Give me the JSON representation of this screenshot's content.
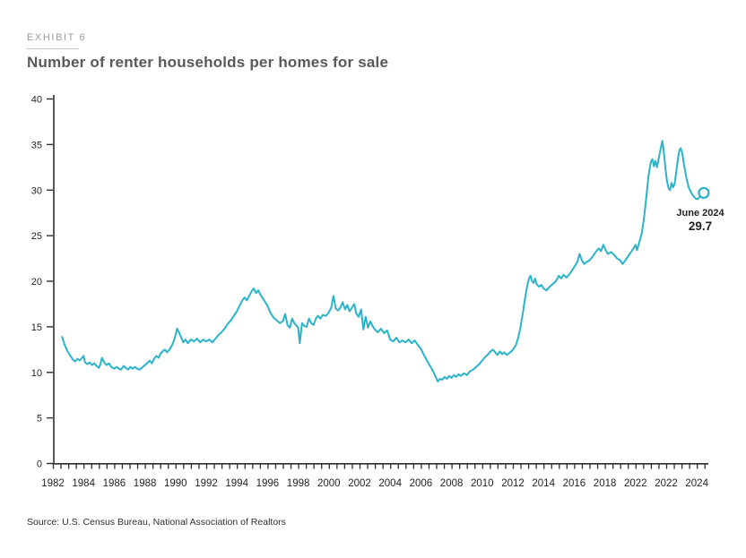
{
  "page": {
    "exhibit_label": "EXHIBIT 6",
    "title": "Number of renter households per homes for sale",
    "source": "Source: U.S. Census Bureau, National Association of Realtors"
  },
  "annotation": {
    "label": "June 2024",
    "value": "29.7"
  },
  "chart_data": {
    "type": "line",
    "title": "Number of renter households per homes for sale",
    "xlabel": "",
    "ylabel": "",
    "ylim": [
      0,
      40
    ],
    "x_range": [
      1982,
      2025
    ],
    "grid": false,
    "legend": "none",
    "line_color": "#2ab3c9",
    "axis_color": "#2e2e2e",
    "tick_label_color": "#231f20",
    "y_ticks": [
      0,
      5,
      10,
      15,
      20,
      25,
      30,
      35,
      40
    ],
    "x_tick_labels": [
      "1982",
      "1984",
      "1986",
      "1988",
      "1990",
      "1992",
      "1994",
      "1996",
      "1998",
      "2000",
      "2002",
      "2004",
      "2006",
      "2008",
      "2010",
      "2012",
      "2014",
      "2016",
      "2018",
      "2022",
      "2022",
      "2024"
    ],
    "end_marker": {
      "shape": "open-circle",
      "x": 2024.45,
      "y": 29.7,
      "label": "June 2024",
      "value": 29.7
    },
    "series": [
      {
        "name": "Renter households per homes for sale",
        "points": [
          [
            1982.6,
            13.9
          ],
          [
            1982.75,
            13.1
          ],
          [
            1982.9,
            12.5
          ],
          [
            1983.0,
            12.2
          ],
          [
            1983.15,
            11.8
          ],
          [
            1983.3,
            11.4
          ],
          [
            1983.45,
            11.2
          ],
          [
            1983.6,
            11.5
          ],
          [
            1983.75,
            11.3
          ],
          [
            1983.9,
            11.6
          ],
          [
            1984.0,
            11.8
          ],
          [
            1984.1,
            11.1
          ],
          [
            1984.25,
            10.9
          ],
          [
            1984.4,
            11.1
          ],
          [
            1984.55,
            10.8
          ],
          [
            1984.7,
            11.0
          ],
          [
            1984.85,
            10.7
          ],
          [
            1985.0,
            10.5
          ],
          [
            1985.1,
            10.9
          ],
          [
            1985.2,
            11.6
          ],
          [
            1985.35,
            11.1
          ],
          [
            1985.5,
            10.8
          ],
          [
            1985.65,
            11.0
          ],
          [
            1985.8,
            10.6
          ],
          [
            1986.0,
            10.4
          ],
          [
            1986.15,
            10.6
          ],
          [
            1986.3,
            10.4
          ],
          [
            1986.45,
            10.3
          ],
          [
            1986.6,
            10.7
          ],
          [
            1986.75,
            10.5
          ],
          [
            1986.9,
            10.3
          ],
          [
            1987.05,
            10.6
          ],
          [
            1987.2,
            10.4
          ],
          [
            1987.35,
            10.6
          ],
          [
            1987.5,
            10.4
          ],
          [
            1987.65,
            10.3
          ],
          [
            1987.8,
            10.5
          ],
          [
            1988.0,
            10.8
          ],
          [
            1988.15,
            11.0
          ],
          [
            1988.3,
            11.3
          ],
          [
            1988.45,
            11.0
          ],
          [
            1988.6,
            11.5
          ],
          [
            1988.75,
            11.8
          ],
          [
            1988.9,
            11.6
          ],
          [
            1989.0,
            12.0
          ],
          [
            1989.15,
            12.3
          ],
          [
            1989.3,
            12.5
          ],
          [
            1989.45,
            12.2
          ],
          [
            1989.6,
            12.5
          ],
          [
            1989.75,
            12.9
          ],
          [
            1989.9,
            13.5
          ],
          [
            1990.0,
            14.1
          ],
          [
            1990.1,
            14.8
          ],
          [
            1990.25,
            14.3
          ],
          [
            1990.4,
            13.7
          ],
          [
            1990.5,
            13.3
          ],
          [
            1990.65,
            13.6
          ],
          [
            1990.8,
            13.2
          ],
          [
            1991.0,
            13.6
          ],
          [
            1991.2,
            13.4
          ],
          [
            1991.4,
            13.7
          ],
          [
            1991.6,
            13.3
          ],
          [
            1991.8,
            13.6
          ],
          [
            1992.0,
            13.4
          ],
          [
            1992.2,
            13.6
          ],
          [
            1992.4,
            13.3
          ],
          [
            1992.6,
            13.7
          ],
          [
            1992.8,
            14.1
          ],
          [
            1993.0,
            14.4
          ],
          [
            1993.2,
            14.8
          ],
          [
            1993.4,
            15.3
          ],
          [
            1993.6,
            15.7
          ],
          [
            1993.8,
            16.2
          ],
          [
            1994.0,
            16.7
          ],
          [
            1994.2,
            17.4
          ],
          [
            1994.35,
            17.9
          ],
          [
            1994.5,
            18.2
          ],
          [
            1994.65,
            17.9
          ],
          [
            1994.8,
            18.4
          ],
          [
            1995.0,
            19.0
          ],
          [
            1995.1,
            19.2
          ],
          [
            1995.25,
            18.7
          ],
          [
            1995.4,
            19.0
          ],
          [
            1995.55,
            18.5
          ],
          [
            1995.7,
            18.1
          ],
          [
            1995.85,
            17.7
          ],
          [
            1996.0,
            17.3
          ],
          [
            1996.2,
            16.5
          ],
          [
            1996.4,
            16.0
          ],
          [
            1996.6,
            15.7
          ],
          [
            1996.8,
            15.4
          ],
          [
            1997.0,
            15.6
          ],
          [
            1997.15,
            16.4
          ],
          [
            1997.3,
            15.2
          ],
          [
            1997.45,
            14.9
          ],
          [
            1997.6,
            15.9
          ],
          [
            1997.75,
            15.4
          ],
          [
            1997.9,
            15.1
          ],
          [
            1998.0,
            14.9
          ],
          [
            1998.1,
            13.2
          ],
          [
            1998.25,
            15.4
          ],
          [
            1998.4,
            15.1
          ],
          [
            1998.55,
            15.0
          ],
          [
            1998.7,
            15.9
          ],
          [
            1998.85,
            15.4
          ],
          [
            1999.0,
            15.2
          ],
          [
            1999.15,
            15.9
          ],
          [
            1999.3,
            16.2
          ],
          [
            1999.45,
            15.9
          ],
          [
            1999.6,
            16.3
          ],
          [
            1999.8,
            16.2
          ],
          [
            2000.0,
            16.6
          ],
          [
            2000.15,
            17.1
          ],
          [
            2000.3,
            18.4
          ],
          [
            2000.45,
            17.0
          ],
          [
            2000.6,
            16.8
          ],
          [
            2000.75,
            17.1
          ],
          [
            2000.9,
            17.7
          ],
          [
            2001.05,
            16.9
          ],
          [
            2001.2,
            17.4
          ],
          [
            2001.35,
            16.7
          ],
          [
            2001.5,
            17.1
          ],
          [
            2001.65,
            17.5
          ],
          [
            2001.8,
            16.4
          ],
          [
            2001.95,
            16.1
          ],
          [
            2002.1,
            16.9
          ],
          [
            2002.25,
            14.7
          ],
          [
            2002.4,
            16.1
          ],
          [
            2002.55,
            14.9
          ],
          [
            2002.7,
            15.6
          ],
          [
            2002.85,
            15.1
          ],
          [
            2003.0,
            14.7
          ],
          [
            2003.2,
            14.4
          ],
          [
            2003.4,
            14.8
          ],
          [
            2003.6,
            14.3
          ],
          [
            2003.8,
            14.6
          ],
          [
            2004.0,
            13.6
          ],
          [
            2004.2,
            13.4
          ],
          [
            2004.4,
            13.8
          ],
          [
            2004.6,
            13.3
          ],
          [
            2004.8,
            13.5
          ],
          [
            2005.0,
            13.3
          ],
          [
            2005.2,
            13.6
          ],
          [
            2005.4,
            13.2
          ],
          [
            2005.6,
            13.5
          ],
          [
            2005.8,
            13.0
          ],
          [
            2006.0,
            12.6
          ],
          [
            2006.2,
            11.9
          ],
          [
            2006.4,
            11.3
          ],
          [
            2006.6,
            10.7
          ],
          [
            2006.8,
            10.1
          ],
          [
            2007.0,
            9.4
          ],
          [
            2007.1,
            9.0
          ],
          [
            2007.25,
            9.3
          ],
          [
            2007.4,
            9.2
          ],
          [
            2007.55,
            9.5
          ],
          [
            2007.7,
            9.3
          ],
          [
            2007.85,
            9.6
          ],
          [
            2008.0,
            9.4
          ],
          [
            2008.15,
            9.7
          ],
          [
            2008.3,
            9.5
          ],
          [
            2008.45,
            9.8
          ],
          [
            2008.6,
            9.6
          ],
          [
            2008.8,
            9.9
          ],
          [
            2009.0,
            9.7
          ],
          [
            2009.2,
            10.1
          ],
          [
            2009.4,
            10.3
          ],
          [
            2009.6,
            10.6
          ],
          [
            2009.8,
            10.9
          ],
          [
            2010.0,
            11.3
          ],
          [
            2010.2,
            11.7
          ],
          [
            2010.4,
            12.0
          ],
          [
            2010.55,
            12.3
          ],
          [
            2010.7,
            12.5
          ],
          [
            2010.85,
            12.2
          ],
          [
            2011.0,
            11.9
          ],
          [
            2011.15,
            12.3
          ],
          [
            2011.3,
            12.0
          ],
          [
            2011.45,
            12.2
          ],
          [
            2011.6,
            11.9
          ],
          [
            2011.75,
            12.1
          ],
          [
            2011.9,
            12.3
          ],
          [
            2012.05,
            12.6
          ],
          [
            2012.2,
            13.0
          ],
          [
            2012.35,
            13.8
          ],
          [
            2012.5,
            15.0
          ],
          [
            2012.65,
            16.5
          ],
          [
            2012.8,
            18.2
          ],
          [
            2012.95,
            19.6
          ],
          [
            2013.05,
            20.3
          ],
          [
            2013.15,
            20.6
          ],
          [
            2013.25,
            20.0
          ],
          [
            2013.35,
            19.8
          ],
          [
            2013.45,
            20.3
          ],
          [
            2013.55,
            19.7
          ],
          [
            2013.7,
            19.4
          ],
          [
            2013.85,
            19.6
          ],
          [
            2014.0,
            19.2
          ],
          [
            2014.2,
            19.0
          ],
          [
            2014.4,
            19.4
          ],
          [
            2014.6,
            19.7
          ],
          [
            2014.8,
            20.0
          ],
          [
            2015.0,
            20.6
          ],
          [
            2015.15,
            20.3
          ],
          [
            2015.3,
            20.7
          ],
          [
            2015.5,
            20.4
          ],
          [
            2015.7,
            20.8
          ],
          [
            2015.9,
            21.3
          ],
          [
            2016.05,
            21.7
          ],
          [
            2016.2,
            22.1
          ],
          [
            2016.35,
            23.0
          ],
          [
            2016.5,
            22.3
          ],
          [
            2016.65,
            21.9
          ],
          [
            2016.8,
            22.1
          ],
          [
            2017.0,
            22.3
          ],
          [
            2017.2,
            22.7
          ],
          [
            2017.4,
            23.2
          ],
          [
            2017.6,
            23.6
          ],
          [
            2017.75,
            23.3
          ],
          [
            2017.9,
            24.0
          ],
          [
            2018.05,
            23.4
          ],
          [
            2018.2,
            23.0
          ],
          [
            2018.4,
            23.2
          ],
          [
            2018.6,
            22.9
          ],
          [
            2018.8,
            22.5
          ],
          [
            2019.0,
            22.3
          ],
          [
            2019.15,
            21.9
          ],
          [
            2019.3,
            22.2
          ],
          [
            2019.5,
            22.7
          ],
          [
            2019.7,
            23.2
          ],
          [
            2019.9,
            23.7
          ],
          [
            2020.0,
            24.0
          ],
          [
            2020.1,
            23.4
          ],
          [
            2020.25,
            24.3
          ],
          [
            2020.4,
            25.2
          ],
          [
            2020.55,
            26.9
          ],
          [
            2020.7,
            29.2
          ],
          [
            2020.85,
            31.6
          ],
          [
            2021.0,
            33.1
          ],
          [
            2021.1,
            33.4
          ],
          [
            2021.2,
            32.6
          ],
          [
            2021.3,
            33.2
          ],
          [
            2021.4,
            32.5
          ],
          [
            2021.5,
            33.4
          ],
          [
            2021.65,
            34.6
          ],
          [
            2021.75,
            35.4
          ],
          [
            2021.85,
            34.2
          ],
          [
            2021.95,
            32.4
          ],
          [
            2022.05,
            31.0
          ],
          [
            2022.15,
            30.2
          ],
          [
            2022.25,
            30.0
          ],
          [
            2022.35,
            30.8
          ],
          [
            2022.45,
            30.3
          ],
          [
            2022.55,
            30.7
          ],
          [
            2022.65,
            31.9
          ],
          [
            2022.75,
            33.2
          ],
          [
            2022.85,
            34.3
          ],
          [
            2022.95,
            34.6
          ],
          [
            2023.05,
            34.0
          ],
          [
            2023.15,
            32.9
          ],
          [
            2023.3,
            31.5
          ],
          [
            2023.45,
            30.4
          ],
          [
            2023.6,
            29.8
          ],
          [
            2023.75,
            29.4
          ],
          [
            2023.9,
            29.1
          ],
          [
            2024.05,
            29.0
          ],
          [
            2024.2,
            29.3
          ],
          [
            2024.45,
            29.7
          ]
        ]
      }
    ]
  }
}
